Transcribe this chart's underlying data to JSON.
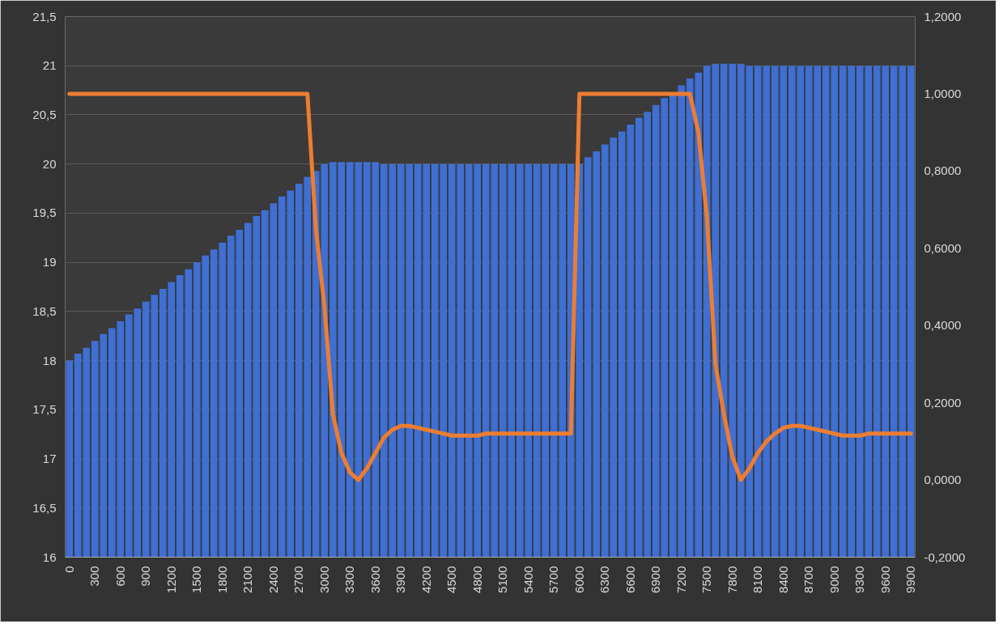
{
  "chart_data": {
    "type": "bar",
    "categories": [
      "0",
      null,
      null,
      "300",
      null,
      null,
      "600",
      null,
      null,
      "900",
      null,
      null,
      "1200",
      null,
      null,
      "1500",
      null,
      null,
      "1800",
      null,
      null,
      "2100",
      null,
      null,
      "2400",
      null,
      null,
      "2700",
      null,
      null,
      "3000",
      null,
      null,
      "3300",
      null,
      null,
      "3600",
      null,
      null,
      "3900",
      null,
      null,
      "4200",
      null,
      null,
      "4500",
      null,
      null,
      "4800",
      null,
      null,
      "5100",
      null,
      null,
      "5400",
      null,
      null,
      "5700",
      null,
      null,
      "6000",
      null,
      null,
      "6300",
      null,
      null,
      "6600",
      null,
      null,
      "6900",
      null,
      null,
      "7200",
      null,
      null,
      "7500",
      null,
      null,
      "7800",
      null,
      null,
      "8100",
      null,
      null,
      "8400",
      null,
      null,
      "8700",
      null,
      null,
      "9000",
      null,
      null,
      "9300",
      null,
      null,
      "9600",
      null,
      null,
      "9900"
    ],
    "series": [
      {
        "color": "#3f6fd3",
        "values": [
          18.0,
          18.07,
          18.13,
          18.2,
          18.27,
          18.33,
          18.4,
          18.47,
          18.53,
          18.6,
          18.67,
          18.73,
          18.8,
          18.87,
          18.93,
          19.0,
          19.07,
          19.13,
          19.2,
          19.27,
          19.33,
          19.4,
          19.47,
          19.53,
          19.6,
          19.67,
          19.73,
          19.8,
          19.87,
          19.93,
          20.0,
          20.02,
          20.02,
          20.02,
          20.02,
          20.02,
          20.02,
          20.0,
          20.0,
          20.0,
          20.0,
          20.0,
          20.0,
          20.0,
          20.0,
          20.0,
          20.0,
          20.0,
          20.0,
          20.0,
          20.0,
          20.0,
          20.0,
          20.0,
          20.0,
          20.0,
          20.0,
          20.0,
          20.0,
          20.0,
          20.0,
          20.07,
          20.13,
          20.2,
          20.27,
          20.33,
          20.4,
          20.47,
          20.53,
          20.6,
          20.67,
          20.73,
          20.8,
          20.87,
          20.93,
          21.0,
          21.02,
          21.02,
          21.02,
          21.02,
          21.0,
          21.0,
          21.0,
          21.0,
          21.0,
          21.0,
          21.0,
          21.0,
          21.0,
          21.0,
          21.0,
          21.0,
          21.0,
          21.0,
          21.0,
          21.0,
          21.0,
          21.0,
          21.0,
          21.0
        ]
      },
      {
        "type": "line",
        "axis": "y2",
        "color": "#ed7d31",
        "values": [
          1.0,
          1.0,
          1.0,
          1.0,
          1.0,
          1.0,
          1.0,
          1.0,
          1.0,
          1.0,
          1.0,
          1.0,
          1.0,
          1.0,
          1.0,
          1.0,
          1.0,
          1.0,
          1.0,
          1.0,
          1.0,
          1.0,
          1.0,
          1.0,
          1.0,
          1.0,
          1.0,
          1.0,
          1.0,
          0.65,
          0.45,
          0.17,
          0.07,
          0.02,
          0.0,
          0.03,
          0.07,
          0.11,
          0.13,
          0.14,
          0.14,
          0.135,
          0.13,
          0.125,
          0.12,
          0.115,
          0.115,
          0.115,
          0.115,
          0.12,
          0.12,
          0.12,
          0.12,
          0.12,
          0.12,
          0.12,
          0.12,
          0.12,
          0.12,
          0.12,
          1.0,
          1.0,
          1.0,
          1.0,
          1.0,
          1.0,
          1.0,
          1.0,
          1.0,
          1.0,
          1.0,
          1.0,
          1.0,
          1.0,
          0.9,
          0.68,
          0.3,
          0.17,
          0.06,
          0.0,
          0.03,
          0.07,
          0.1,
          0.12,
          0.135,
          0.14,
          0.14,
          0.135,
          0.13,
          0.125,
          0.12,
          0.115,
          0.115,
          0.115,
          0.12,
          0.12,
          0.12,
          0.12,
          0.12,
          0.12
        ]
      }
    ],
    "ylim": [
      16,
      21.5
    ],
    "yticks": [
      16,
      {
        "value": 16.5,
        "label": "16,5"
      },
      17,
      {
        "value": 17.5,
        "label": "17,5"
      },
      18,
      {
        "value": 18.5,
        "label": "18,5"
      },
      19,
      {
        "value": 19.5,
        "label": "19,5"
      },
      20,
      {
        "value": 20.5,
        "label": "20,5"
      },
      21,
      {
        "value": 21.5,
        "label": "21,5"
      }
    ],
    "y2lim": [
      -0.2,
      1.2
    ],
    "y2ticks": [
      {
        "value": -0.2,
        "label": "-0,2000"
      },
      {
        "value": 0,
        "label": "0,0000"
      },
      {
        "value": 0.2,
        "label": "0,2000"
      },
      {
        "value": 0.4,
        "label": "0,4000"
      },
      {
        "value": 0.6,
        "label": "0,6000"
      },
      {
        "value": 0.8,
        "label": "0,8000"
      },
      {
        "value": 1.0,
        "label": "1,0000"
      },
      {
        "value": 1.2,
        "label": "1,2000"
      }
    ],
    "grid": "y",
    "line_style": "solid",
    "marker": "none"
  }
}
